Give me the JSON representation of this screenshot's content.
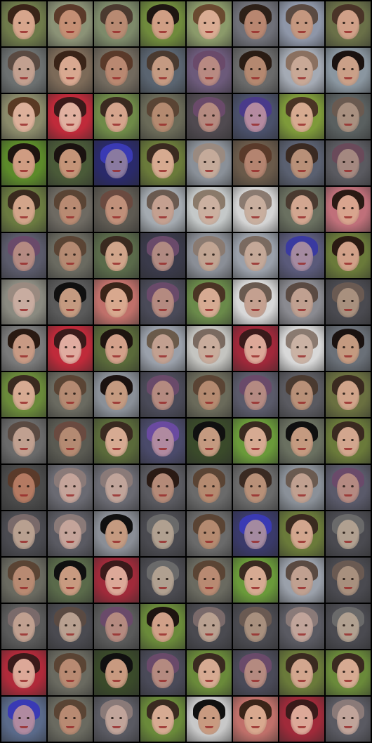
{
  "grid": {
    "rows": 16,
    "cols": 8,
    "tiles": [
      {
        "bg": "#6e7a4a",
        "hair": "#3a2418",
        "skin": "#d6a58c"
      },
      {
        "bg": "#8b9276",
        "hair": "#5a3a2a",
        "skin": "#c48f74"
      },
      {
        "bg": "#7d8a6a",
        "hair": "#4b3a30",
        "skin": "#b88a72"
      },
      {
        "bg": "#6f8a3c",
        "hair": "#1e1612",
        "skin": "#cf9e84"
      },
      {
        "bg": "#8b9a6a",
        "hair": "#6a4a30",
        "skin": "#d9ac93"
      },
      {
        "bg": "#6f7078",
        "hair": "#2d2018",
        "skin": "#b88670"
      },
      {
        "bg": "#8e96a8",
        "hair": "#5a4a42",
        "skin": "#c4977f"
      },
      {
        "bg": "#6a7048",
        "hair": "#4a3428",
        "skin": "#d0a088"
      },
      {
        "bg": "#6c7070",
        "hair": "#5a4a42",
        "skin": "#c2a090"
      },
      {
        "bg": "#7c6a58",
        "hair": "#3a2418",
        "skin": "#d8a890"
      },
      {
        "bg": "#726a5e",
        "hair": "#5a3a2a",
        "skin": "#b98871"
      },
      {
        "bg": "#5a6470",
        "hair": "#4a3a30",
        "skin": "#c49a82"
      },
      {
        "bg": "#6c5a7a",
        "hair": "#6a4a6a",
        "skin": "#b88a82"
      },
      {
        "bg": "#6a6a6a",
        "hair": "#2a1c14",
        "skin": "#b48870"
      },
      {
        "bg": "#a4aab4",
        "hair": "#8a7060",
        "skin": "#c8a896"
      },
      {
        "bg": "#8a96a0",
        "hair": "#1a1210",
        "skin": "#caa088"
      },
      {
        "bg": "#8a8a6a",
        "hair": "#5a3a24",
        "skin": "#dcb09a"
      },
      {
        "bg": "#c02a3a",
        "hair": "#3a1a1a",
        "skin": "#e0b0a0"
      },
      {
        "bg": "#6f8a48",
        "hair": "#3a2a20",
        "skin": "#d4a48c"
      },
      {
        "bg": "#6a6a58",
        "hair": "#5a4434",
        "skin": "#b48a70"
      },
      {
        "bg": "#504a50",
        "hair": "#6a4a6a",
        "skin": "#b48a80"
      },
      {
        "bg": "#4a506a",
        "hair": "#4a3a8a",
        "skin": "#b48aa0"
      },
      {
        "bg": "#7e9a3a",
        "hair": "#4a3424",
        "skin": "#d6aa90"
      },
      {
        "bg": "#5a6060",
        "hair": "#6a5a50",
        "skin": "#a89080"
      },
      {
        "bg": "#5c8a2a",
        "hair": "#1e1410",
        "skin": "#cf9c82"
      },
      {
        "bg": "#4a5a38",
        "hair": "#1a1210",
        "skin": "#c49478"
      },
      {
        "bg": "#2a2a6a",
        "hair": "#3a3ab4",
        "skin": "#8a7aa0"
      },
      {
        "bg": "#6a7a3a",
        "hair": "#3a2a20",
        "skin": "#d6aa90"
      },
      {
        "bg": "#8a9098",
        "hair": "#9a8a80",
        "skin": "#c4aa9a"
      },
      {
        "bg": "#6a5a4a",
        "hair": "#5a3a2a",
        "skin": "#b48470"
      },
      {
        "bg": "#5a6070",
        "hair": "#3a2a22",
        "skin": "#b89078"
      },
      {
        "bg": "#5a5a60",
        "hair": "#6a4a5a",
        "skin": "#a48880"
      },
      {
        "bg": "#6a7a40",
        "hair": "#3a2a1e",
        "skin": "#d2a48a"
      },
      {
        "bg": "#6e6a62",
        "hair": "#5a4434",
        "skin": "#b88a72"
      },
      {
        "bg": "#5e5a52",
        "hair": "#6a4a40",
        "skin": "#c0907a"
      },
      {
        "bg": "#a4aab0",
        "hair": "#6a5a50",
        "skin": "#c4a090"
      },
      {
        "bg": "#c4c8c8",
        "hair": "#8a7a6a",
        "skin": "#cbb0a0"
      },
      {
        "bg": "#d4d4d4",
        "hair": "#8a7a70",
        "skin": "#c8ae9e"
      },
      {
        "bg": "#6a7060",
        "hair": "#4a3a30",
        "skin": "#d2a690"
      },
      {
        "bg": "#c0707a",
        "hair": "#2a1a14",
        "skin": "#d8a48e"
      },
      {
        "bg": "#5a5a6a",
        "hair": "#6a4a6a",
        "skin": "#b48a82"
      },
      {
        "bg": "#6a6a60",
        "hair": "#5a4434",
        "skin": "#b48a72"
      },
      {
        "bg": "#5a6a4a",
        "hair": "#3a2a20",
        "skin": "#d0a48a"
      },
      {
        "bg": "#3a3a4a",
        "hair": "#6a4a6a",
        "skin": "#b08a82"
      },
      {
        "bg": "#8a8e96",
        "hair": "#8a7a70",
        "skin": "#c0a492"
      },
      {
        "bg": "#9aa0aa",
        "hair": "#7a6a60",
        "skin": "#c4a898"
      },
      {
        "bg": "#5a5a7a",
        "hair": "#3a3aa0",
        "skin": "#a48aa0"
      },
      {
        "bg": "#6a7a3a",
        "hair": "#2a1a12",
        "skin": "#d0a088"
      },
      {
        "bg": "#8a8a80",
        "hair": "#9a8a80",
        "skin": "#c8aca0"
      },
      {
        "bg": "#5a5a5a",
        "hair": "#101010",
        "skin": "#c49a80"
      },
      {
        "bg": "#c0706a",
        "hair": "#3a2418",
        "skin": "#d8a88e"
      },
      {
        "bg": "#4a4a58",
        "hair": "#6a4a6a",
        "skin": "#b48a80"
      },
      {
        "bg": "#6a8a4a",
        "hair": "#4a3424",
        "skin": "#d6aa92"
      },
      {
        "bg": "#d8d8d8",
        "hair": "#6a5a50",
        "skin": "#c4a090"
      },
      {
        "bg": "#8a8a90",
        "hair": "#5a4a42",
        "skin": "#c0a090"
      },
      {
        "bg": "#4a4a50",
        "hair": "#6a5a52",
        "skin": "#a8907e"
      },
      {
        "bg": "#7a7a7a",
        "hair": "#2a1a12",
        "skin": "#c89a84"
      },
      {
        "bg": "#c02a3a",
        "hair": "#3a1a1a",
        "skin": "#e0aca0"
      },
      {
        "bg": "#5a6a3a",
        "hair": "#1e1410",
        "skin": "#d2a08a"
      },
      {
        "bg": "#9aa0aa",
        "hair": "#6a5a4a",
        "skin": "#c2a090"
      },
      {
        "bg": "#c4c4c0",
        "hair": "#7a6a60",
        "skin": "#c8ac9c"
      },
      {
        "bg": "#a0283a",
        "hair": "#3a1a1a",
        "skin": "#dca898"
      },
      {
        "bg": "#d8d8d8",
        "hair": "#8a7a70",
        "skin": "#cab2a4"
      },
      {
        "bg": "#6a7078",
        "hair": "#1a1210",
        "skin": "#c49a80"
      },
      {
        "bg": "#6a8a3a",
        "hair": "#3a2a20",
        "skin": "#d6aa92"
      },
      {
        "bg": "#6a6a60",
        "hair": "#5a4434",
        "skin": "#b48a72"
      },
      {
        "bg": "#8a9098",
        "hair": "#1a1210",
        "skin": "#c49a80"
      },
      {
        "bg": "#4a4a58",
        "hair": "#6a4a6a",
        "skin": "#b48a80"
      },
      {
        "bg": "#6a6a5a",
        "hair": "#5a4434",
        "skin": "#b48a70"
      },
      {
        "bg": "#5a5a6a",
        "hair": "#6a4a6a",
        "skin": "#b48a82"
      },
      {
        "bg": "#5a5a60",
        "hair": "#4a3a30",
        "skin": "#b89078"
      },
      {
        "bg": "#6a7040",
        "hair": "#3a2a20",
        "skin": "#d0a48a"
      },
      {
        "bg": "#6a6a6a",
        "hair": "#5a4a42",
        "skin": "#c0a090"
      },
      {
        "bg": "#5a5a52",
        "hair": "#6a4a40",
        "skin": "#b48a72"
      },
      {
        "bg": "#5a6a3a",
        "hair": "#3a2a20",
        "skin": "#d6aa92"
      },
      {
        "bg": "#4a4a6a",
        "hair": "#6a4aa0",
        "skin": "#b08aa0"
      },
      {
        "bg": "#3a4a2a",
        "hair": "#101010",
        "skin": "#c49a80"
      },
      {
        "bg": "#6a9a3a",
        "hair": "#3a2a20",
        "skin": "#d6aa92"
      },
      {
        "bg": "#6a7060",
        "hair": "#101010",
        "skin": "#c49a80"
      },
      {
        "bg": "#6a7a3a",
        "hair": "#3a2a20",
        "skin": "#d2a68e"
      },
      {
        "bg": "#4a4a4a",
        "hair": "#5a3a2a",
        "skin": "#b47a62"
      },
      {
        "bg": "#6a6a72",
        "hair": "#8a7a78",
        "skin": "#c4a49a"
      },
      {
        "bg": "#6a6a72",
        "hair": "#8a7a78",
        "skin": "#c0a49a"
      },
      {
        "bg": "#5a5a60",
        "hair": "#2a1a14",
        "skin": "#b48a78"
      },
      {
        "bg": "#6a6a6a",
        "hair": "#5a4434",
        "skin": "#b48a70"
      },
      {
        "bg": "#6a6a6a",
        "hair": "#3a2a22",
        "skin": "#b89078"
      },
      {
        "bg": "#8a9098",
        "hair": "#6a5a50",
        "skin": "#c0a090"
      },
      {
        "bg": "#5a5a6a",
        "hair": "#6a4a6a",
        "skin": "#b48a82"
      },
      {
        "bg": "#4a4a50",
        "hair": "#7a6a6a",
        "skin": "#b8a090"
      },
      {
        "bg": "#5a5a62",
        "hair": "#8a7a78",
        "skin": "#c4a49a"
      },
      {
        "bg": "#8a8e96",
        "hair": "#101010",
        "skin": "#c49a80"
      },
      {
        "bg": "#4a4a50",
        "hair": "#6a6a6a",
        "skin": "#b0a090"
      },
      {
        "bg": "#6a6a6a",
        "hair": "#5a4434",
        "skin": "#b48a70"
      },
      {
        "bg": "#3a3a6a",
        "hair": "#3a3ab4",
        "skin": "#a48aa0"
      },
      {
        "bg": "#6a7a3a",
        "hair": "#3a2a20",
        "skin": "#d2a68e"
      },
      {
        "bg": "#4a4a50",
        "hair": "#6a6a6a",
        "skin": "#b0a090"
      },
      {
        "bg": "#6a6a60",
        "hair": "#5a4434",
        "skin": "#b88a72"
      },
      {
        "bg": "#5a6a4a",
        "hair": "#101010",
        "skin": "#c89a80"
      },
      {
        "bg": "#a02a3a",
        "hair": "#3a1a1a",
        "skin": "#dca898"
      },
      {
        "bg": "#4a4a50",
        "hair": "#6a6a6a",
        "skin": "#b0a090"
      },
      {
        "bg": "#6a6a60",
        "hair": "#5a4434",
        "skin": "#b88a72"
      },
      {
        "bg": "#6a9a3a",
        "hair": "#3a2a20",
        "skin": "#d6aa92"
      },
      {
        "bg": "#9aa0aa",
        "hair": "#5a4a42",
        "skin": "#c0a090"
      },
      {
        "bg": "#4a4a50",
        "hair": "#6a5a52",
        "skin": "#a8907e"
      },
      {
        "bg": "#5a5a5a",
        "hair": "#7a6a6a",
        "skin": "#c0a090"
      },
      {
        "bg": "#4a4a50",
        "hair": "#5a4a42",
        "skin": "#b8a090"
      },
      {
        "bg": "#5a5a5a",
        "hair": "#6a4a6a",
        "skin": "#b48a80"
      },
      {
        "bg": "#6a8a3a",
        "hair": "#1e1410",
        "skin": "#d0a088"
      },
      {
        "bg": "#4a4a50",
        "hair": "#7a6a6a",
        "skin": "#b8a090"
      },
      {
        "bg": "#4a4a50",
        "hair": "#6a5a52",
        "skin": "#a8907e"
      },
      {
        "bg": "#5a5a62",
        "hair": "#8a7a78",
        "skin": "#c0a49a"
      },
      {
        "bg": "#4a4a50",
        "hair": "#6a6a6a",
        "skin": "#b0a090"
      },
      {
        "bg": "#b02a3a",
        "hair": "#3a1a1a",
        "skin": "#dca898"
      },
      {
        "bg": "#6a6a60",
        "hair": "#5a4434",
        "skin": "#b88a72"
      },
      {
        "bg": "#3a4a2a",
        "hair": "#101010",
        "skin": "#c89a80"
      },
      {
        "bg": "#4a4a58",
        "hair": "#6a4a6a",
        "skin": "#b48a80"
      },
      {
        "bg": "#6a8a3a",
        "hair": "#3a2a20",
        "skin": "#d6aa92"
      },
      {
        "bg": "#4a4a58",
        "hair": "#6a4a6a",
        "skin": "#b48a80"
      },
      {
        "bg": "#6a7a3a",
        "hair": "#3a2a20",
        "skin": "#d2a68e"
      },
      {
        "bg": "#6a8a3a",
        "hair": "#3a2a20",
        "skin": "#d6aa92"
      },
      {
        "bg": "#5a6a8a",
        "hair": "#3a3ab4",
        "skin": "#b08aa0"
      },
      {
        "bg": "#6a6a60",
        "hair": "#5a4434",
        "skin": "#b88a72"
      },
      {
        "bg": "#5a5a62",
        "hair": "#8a7a78",
        "skin": "#c0a49a"
      },
      {
        "bg": "#6a8a3a",
        "hair": "#3a2a20",
        "skin": "#d6aa92"
      },
      {
        "bg": "#c8c8c8",
        "hair": "#101010",
        "skin": "#c89a80"
      },
      {
        "bg": "#c0706a",
        "hair": "#3a2418",
        "skin": "#d8a88e"
      },
      {
        "bg": "#a02a3a",
        "hair": "#3a1a1a",
        "skin": "#dca898"
      },
      {
        "bg": "#5a5a62",
        "hair": "#8a7a78",
        "skin": "#c0a49a"
      }
    ]
  }
}
